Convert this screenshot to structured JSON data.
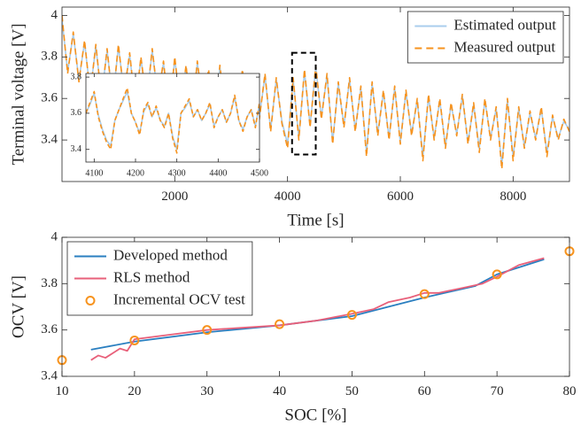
{
  "chart_data": [
    {
      "type": "line",
      "xlabel": "Time [s]",
      "ylabel": "Terminal voltage [V]",
      "xlim": [
        0,
        9000
      ],
      "xticks": [
        2000,
        4000,
        6000,
        8000
      ],
      "ylim": [
        3.2,
        4.04
      ],
      "yticks": [
        3.4,
        3.6,
        3.8,
        4
      ],
      "legend": "upper right",
      "x": [
        0,
        100,
        200,
        300,
        400,
        500,
        600,
        700,
        800,
        900,
        1000,
        1100,
        1200,
        1300,
        1400,
        1500,
        1600,
        1700,
        1800,
        1900,
        2000,
        2100,
        2200,
        2300,
        2400,
        2500,
        2600,
        2700,
        2800,
        2900,
        3000,
        3100,
        3200,
        3300,
        3400,
        3500,
        3600,
        3700,
        3800,
        3900,
        4000,
        4100,
        4200,
        4300,
        4400,
        4500,
        4600,
        4700,
        4800,
        4900,
        5000,
        5100,
        5200,
        5300,
        5400,
        5500,
        5600,
        5700,
        5800,
        5900,
        6000,
        6100,
        6200,
        6300,
        6400,
        6500,
        6600,
        6700,
        6800,
        6900,
        7000,
        7100,
        7200,
        7300,
        7400,
        7500,
        7600,
        7700,
        7800,
        7900,
        8000,
        8100,
        8200,
        8300,
        8400,
        8500,
        8600,
        8700,
        8800,
        8900,
        9000
      ],
      "series": [
        {
          "name": "Estimated output",
          "color": "#a9cdec",
          "dash": false,
          "values": [
            3.98,
            3.73,
            3.91,
            3.69,
            3.87,
            3.63,
            3.85,
            3.61,
            3.83,
            3.59,
            3.85,
            3.63,
            3.81,
            3.57,
            3.79,
            3.59,
            3.83,
            3.61,
            3.77,
            3.53,
            3.79,
            3.56,
            3.75,
            3.51,
            3.77,
            3.57,
            3.73,
            3.49,
            3.75,
            3.53,
            3.71,
            3.51,
            3.73,
            3.47,
            3.69,
            3.51,
            3.71,
            3.45,
            3.69,
            3.49,
            3.38,
            3.69,
            3.41,
            3.73,
            3.47,
            3.75,
            3.51,
            3.71,
            3.39,
            3.67,
            3.47,
            3.69,
            3.45,
            3.65,
            3.34,
            3.67,
            3.43,
            3.63,
            3.41,
            3.65,
            3.39,
            3.63,
            3.43,
            3.59,
            3.32,
            3.61,
            3.41,
            3.59,
            3.37,
            3.57,
            3.43,
            3.61,
            3.39,
            3.57,
            3.36,
            3.59,
            3.41,
            3.55,
            3.28,
            3.59,
            3.32,
            3.55,
            3.37,
            3.53,
            3.41,
            3.55,
            3.34,
            3.51,
            3.41,
            3.49,
            3.45
          ]
        },
        {
          "name": "Measured output",
          "color": "#f7931e",
          "dash": true,
          "values": [
            4.0,
            3.72,
            3.92,
            3.68,
            3.88,
            3.62,
            3.86,
            3.6,
            3.84,
            3.58,
            3.86,
            3.62,
            3.82,
            3.56,
            3.8,
            3.58,
            3.84,
            3.6,
            3.78,
            3.52,
            3.8,
            3.55,
            3.76,
            3.5,
            3.78,
            3.56,
            3.74,
            3.48,
            3.76,
            3.52,
            3.72,
            3.5,
            3.74,
            3.46,
            3.7,
            3.5,
            3.72,
            3.44,
            3.7,
            3.48,
            3.36,
            3.7,
            3.4,
            3.74,
            3.46,
            3.76,
            3.5,
            3.72,
            3.38,
            3.68,
            3.46,
            3.7,
            3.44,
            3.66,
            3.32,
            3.68,
            3.42,
            3.64,
            3.4,
            3.66,
            3.38,
            3.64,
            3.42,
            3.6,
            3.3,
            3.62,
            3.4,
            3.6,
            3.36,
            3.58,
            3.42,
            3.62,
            3.38,
            3.58,
            3.34,
            3.6,
            3.4,
            3.56,
            3.26,
            3.6,
            3.3,
            3.56,
            3.36,
            3.54,
            3.4,
            3.56,
            3.32,
            3.52,
            3.4,
            3.5,
            3.44
          ]
        }
      ]
    },
    {
      "type": "line",
      "inset_of": 0,
      "xlim": [
        4080,
        4500
      ],
      "xticks": [
        4100,
        4200,
        4300,
        4400,
        4500
      ],
      "ylim": [
        3.33,
        3.82
      ],
      "yticks": [
        3.4,
        3.6,
        3.8
      ],
      "x": [
        4080,
        4090,
        4100,
        4110,
        4120,
        4130,
        4140,
        4150,
        4160,
        4170,
        4180,
        4190,
        4200,
        4210,
        4220,
        4230,
        4240,
        4250,
        4260,
        4270,
        4280,
        4290,
        4300,
        4310,
        4320,
        4330,
        4340,
        4350,
        4360,
        4370,
        4380,
        4390,
        4400,
        4410,
        4420,
        4430,
        4440,
        4450,
        4460,
        4470,
        4480,
        4490,
        4500
      ],
      "series": [
        {
          "name": "Estimated output",
          "color": "#a9cdec",
          "dash": false,
          "values": [
            3.6,
            3.65,
            3.71,
            3.59,
            3.51,
            3.45,
            3.42,
            3.56,
            3.62,
            3.67,
            3.72,
            3.6,
            3.55,
            3.49,
            3.61,
            3.65,
            3.58,
            3.63,
            3.56,
            3.53,
            3.6,
            3.47,
            3.4,
            3.6,
            3.63,
            3.67,
            3.58,
            3.62,
            3.56,
            3.6,
            3.65,
            3.53,
            3.58,
            3.62,
            3.55,
            3.6,
            3.69,
            3.56,
            3.51,
            3.58,
            3.62,
            3.53,
            3.65
          ]
        },
        {
          "name": "Measured output",
          "color": "#f7931e",
          "dash": true,
          "values": [
            3.6,
            3.66,
            3.72,
            3.58,
            3.5,
            3.44,
            3.4,
            3.56,
            3.62,
            3.68,
            3.74,
            3.6,
            3.55,
            3.48,
            3.62,
            3.66,
            3.58,
            3.64,
            3.56,
            3.52,
            3.6,
            3.46,
            3.38,
            3.6,
            3.64,
            3.68,
            3.58,
            3.62,
            3.56,
            3.6,
            3.66,
            3.52,
            3.58,
            3.62,
            3.55,
            3.6,
            3.7,
            3.56,
            3.5,
            3.58,
            3.62,
            3.52,
            3.66
          ]
        }
      ]
    },
    {
      "type": "line",
      "xlabel": "SOC [%]",
      "ylabel": "OCV [V]",
      "xlim": [
        10,
        80
      ],
      "xticks": [
        10,
        20,
        30,
        40,
        50,
        60,
        70,
        80
      ],
      "ylim": [
        3.4,
        4
      ],
      "yticks": [
        3.4,
        3.6,
        3.8,
        4
      ],
      "legend": "upper left",
      "series": [
        {
          "name": "Developed method",
          "color": "#2a7fc0",
          "dash": false,
          "x": [
            14,
            20,
            30,
            40,
            50,
            55,
            60,
            67,
            70,
            76.5
          ],
          "values": [
            3.515,
            3.55,
            3.59,
            3.62,
            3.66,
            3.7,
            3.74,
            3.79,
            3.84,
            3.905
          ]
        },
        {
          "name": "RLS method",
          "color": "#e8607a",
          "dash": false,
          "x": [
            14,
            15,
            16,
            18,
            19,
            20,
            25,
            30,
            35,
            40,
            45,
            50,
            53,
            55,
            58,
            60,
            62,
            65,
            68,
            70,
            73,
            76.5
          ],
          "values": [
            3.47,
            3.49,
            3.48,
            3.52,
            3.51,
            3.56,
            3.58,
            3.6,
            3.61,
            3.62,
            3.64,
            3.67,
            3.69,
            3.72,
            3.74,
            3.76,
            3.76,
            3.78,
            3.8,
            3.83,
            3.88,
            3.91
          ]
        },
        {
          "name": "Incremental OCV test",
          "color": "#f7931e",
          "marker": true,
          "x": [
            10,
            20,
            30,
            40,
            50,
            60,
            70,
            80
          ],
          "values": [
            3.47,
            3.555,
            3.6,
            3.625,
            3.665,
            3.755,
            3.84,
            3.94
          ]
        }
      ]
    }
  ]
}
